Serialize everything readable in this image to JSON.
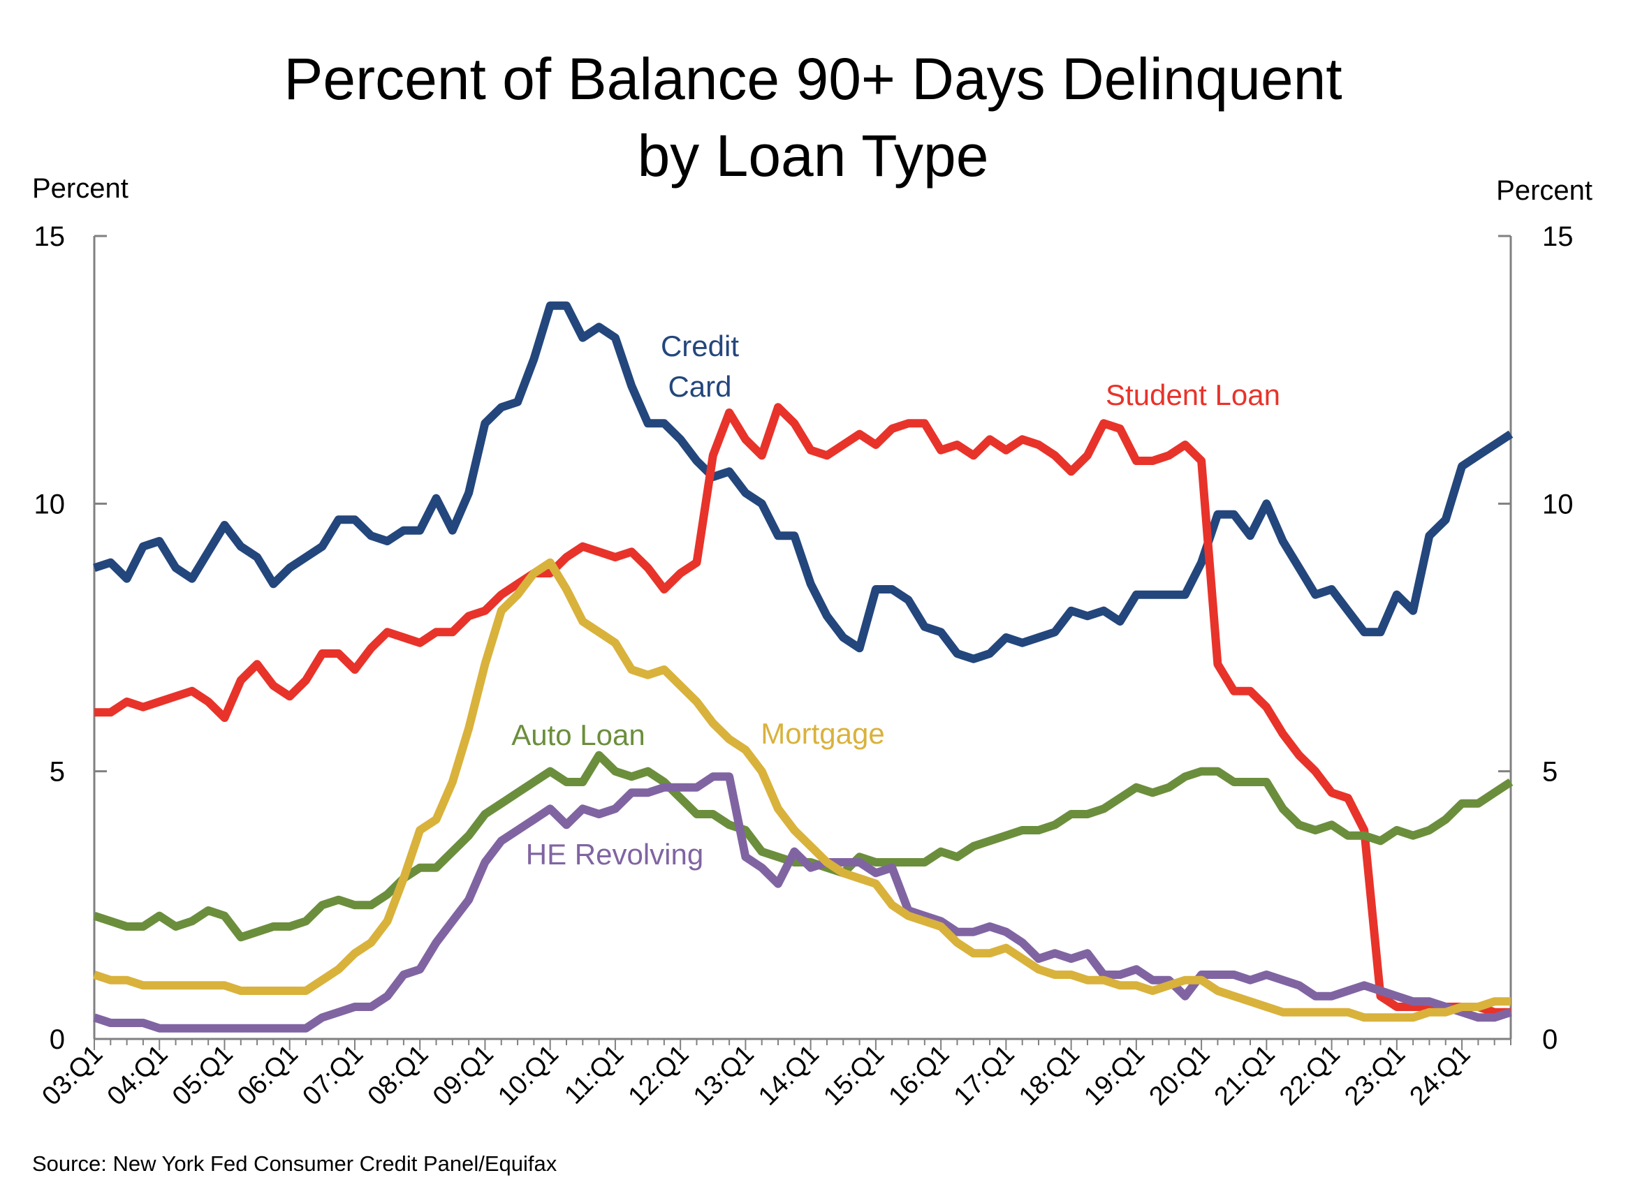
{
  "chart_data": {
    "type": "line",
    "title": [
      "Percent of Balance 90+ Days Delinquent",
      "by Loan Type"
    ],
    "ylabel_left": "Percent",
    "ylabel_right": "Percent",
    "ylim": [
      0,
      15
    ],
    "yticks": [
      0,
      5,
      10,
      15
    ],
    "grid": false,
    "x_tick_labels": [
      "03:Q1",
      "04:Q1",
      "05:Q1",
      "06:Q1",
      "07:Q1",
      "08:Q1",
      "09:Q1",
      "10:Q1",
      "11:Q1",
      "12:Q1",
      "13:Q1",
      "14:Q1",
      "15:Q1",
      "16:Q1",
      "17:Q1",
      "18:Q1",
      "19:Q1",
      "20:Q1",
      "21:Q1",
      "22:Q1",
      "23:Q1",
      "24:Q1"
    ],
    "x_start": "2003:Q1",
    "x_end": "2024:Q3",
    "source": "Source: New York Fed Consumer Credit Panel/Equifax",
    "series": [
      {
        "name": "Credit Card",
        "label_lines": [
          "Credit",
          "Card"
        ],
        "color": "#23467c",
        "values": [
          8.8,
          8.9,
          8.6,
          9.2,
          9.3,
          8.8,
          8.6,
          9.1,
          9.6,
          9.2,
          9.0,
          8.5,
          8.8,
          9.0,
          9.2,
          9.7,
          9.7,
          9.4,
          9.3,
          9.5,
          9.5,
          10.1,
          9.5,
          10.2,
          11.5,
          11.8,
          11.9,
          12.7,
          13.7,
          13.7,
          13.1,
          13.3,
          13.1,
          12.2,
          11.5,
          11.5,
          11.2,
          10.8,
          10.5,
          10.6,
          10.2,
          10.0,
          9.4,
          9.4,
          8.5,
          7.9,
          7.5,
          7.3,
          8.4,
          8.4,
          8.2,
          7.7,
          7.6,
          7.2,
          7.1,
          7.2,
          7.5,
          7.4,
          7.5,
          7.6,
          8.0,
          7.9,
          8.0,
          7.8,
          8.3,
          8.3,
          8.3,
          8.3,
          8.9,
          9.8,
          9.8,
          9.4,
          10.0,
          9.3,
          8.8,
          8.3,
          8.4,
          8.0,
          7.6,
          7.6,
          8.3,
          8.0,
          9.4,
          9.7,
          10.7,
          10.9,
          11.1,
          11.3
        ]
      },
      {
        "name": "Student Loan",
        "label_lines": [
          "Student Loan"
        ],
        "color": "#e8332a",
        "values": [
          6.1,
          6.1,
          6.3,
          6.2,
          6.3,
          6.4,
          6.5,
          6.3,
          6.0,
          6.7,
          7.0,
          6.6,
          6.4,
          6.7,
          7.2,
          7.2,
          6.9,
          7.3,
          7.6,
          7.5,
          7.4,
          7.6,
          7.6,
          7.9,
          8.0,
          8.3,
          8.5,
          8.7,
          8.7,
          9.0,
          9.2,
          9.1,
          9.0,
          9.1,
          8.8,
          8.4,
          8.7,
          8.9,
          10.9,
          11.7,
          11.2,
          10.9,
          11.8,
          11.5,
          11.0,
          10.9,
          11.1,
          11.3,
          11.1,
          11.4,
          11.5,
          11.5,
          11.0,
          11.1,
          10.9,
          11.2,
          11.0,
          11.2,
          11.1,
          10.9,
          10.6,
          10.9,
          11.5,
          11.4,
          10.8,
          10.8,
          10.9,
          11.1,
          10.8,
          7.0,
          6.5,
          6.5,
          6.2,
          5.7,
          5.3,
          5.0,
          4.6,
          4.5,
          3.9,
          0.8,
          0.6,
          0.6,
          0.6,
          0.6,
          0.6,
          0.6,
          0.5,
          0.5
        ]
      },
      {
        "name": "Mortgage",
        "label_lines": [
          "Mortgage"
        ],
        "color": "#d9b23c",
        "values": [
          1.2,
          1.1,
          1.1,
          1.0,
          1.0,
          1.0,
          1.0,
          1.0,
          1.0,
          0.9,
          0.9,
          0.9,
          0.9,
          0.9,
          1.1,
          1.3,
          1.6,
          1.8,
          2.2,
          3.0,
          3.9,
          4.1,
          4.8,
          5.8,
          7.0,
          8.0,
          8.3,
          8.7,
          8.9,
          8.4,
          7.8,
          7.6,
          7.4,
          6.9,
          6.8,
          6.9,
          6.6,
          6.3,
          5.9,
          5.6,
          5.4,
          5.0,
          4.3,
          3.9,
          3.6,
          3.3,
          3.1,
          3.0,
          2.9,
          2.5,
          2.3,
          2.2,
          2.1,
          1.8,
          1.6,
          1.6,
          1.7,
          1.5,
          1.3,
          1.2,
          1.2,
          1.1,
          1.1,
          1.0,
          1.0,
          0.9,
          1.0,
          1.1,
          1.1,
          0.9,
          0.8,
          0.7,
          0.6,
          0.5,
          0.5,
          0.5,
          0.5,
          0.5,
          0.4,
          0.4,
          0.4,
          0.4,
          0.5,
          0.5,
          0.6,
          0.6,
          0.7,
          0.7
        ]
      },
      {
        "name": "Auto Loan",
        "label_lines": [
          "Auto Loan"
        ],
        "color": "#6b8e3c",
        "values": [
          2.3,
          2.2,
          2.1,
          2.1,
          2.3,
          2.1,
          2.2,
          2.4,
          2.3,
          1.9,
          2.0,
          2.1,
          2.1,
          2.2,
          2.5,
          2.6,
          2.5,
          2.5,
          2.7,
          3.0,
          3.2,
          3.2,
          3.5,
          3.8,
          4.2,
          4.4,
          4.6,
          4.8,
          5.0,
          4.8,
          4.8,
          5.3,
          5.0,
          4.9,
          5.0,
          4.8,
          4.5,
          4.2,
          4.2,
          4.0,
          3.9,
          3.5,
          3.4,
          3.3,
          3.3,
          3.2,
          3.1,
          3.4,
          3.3,
          3.3,
          3.3,
          3.3,
          3.5,
          3.4,
          3.6,
          3.7,
          3.8,
          3.9,
          3.9,
          4.0,
          4.2,
          4.2,
          4.3,
          4.5,
          4.7,
          4.6,
          4.7,
          4.9,
          5.0,
          5.0,
          4.8,
          4.8,
          4.8,
          4.3,
          4.0,
          3.9,
          4.0,
          3.8,
          3.8,
          3.7,
          3.9,
          3.8,
          3.9,
          4.1,
          4.4,
          4.4,
          4.6,
          4.8
        ]
      },
      {
        "name": "HE Revolving",
        "label_lines": [
          "HE Revolving"
        ],
        "color": "#8064a2",
        "values": [
          0.4,
          0.3,
          0.3,
          0.3,
          0.2,
          0.2,
          0.2,
          0.2,
          0.2,
          0.2,
          0.2,
          0.2,
          0.2,
          0.2,
          0.4,
          0.5,
          0.6,
          0.6,
          0.8,
          1.2,
          1.3,
          1.8,
          2.2,
          2.6,
          3.3,
          3.7,
          3.9,
          4.1,
          4.3,
          4.0,
          4.3,
          4.2,
          4.3,
          4.6,
          4.6,
          4.7,
          4.7,
          4.7,
          4.9,
          4.9,
          3.4,
          3.2,
          2.9,
          3.5,
          3.2,
          3.3,
          3.3,
          3.3,
          3.1,
          3.2,
          2.4,
          2.3,
          2.2,
          2.0,
          2.0,
          2.1,
          2.0,
          1.8,
          1.5,
          1.6,
          1.5,
          1.6,
          1.2,
          1.2,
          1.3,
          1.1,
          1.1,
          0.8,
          1.2,
          1.2,
          1.2,
          1.1,
          1.2,
          1.1,
          1.0,
          0.8,
          0.8,
          0.9,
          1.0,
          0.9,
          0.8,
          0.7,
          0.7,
          0.6,
          0.5,
          0.4,
          0.4,
          0.5
        ]
      }
    ]
  }
}
